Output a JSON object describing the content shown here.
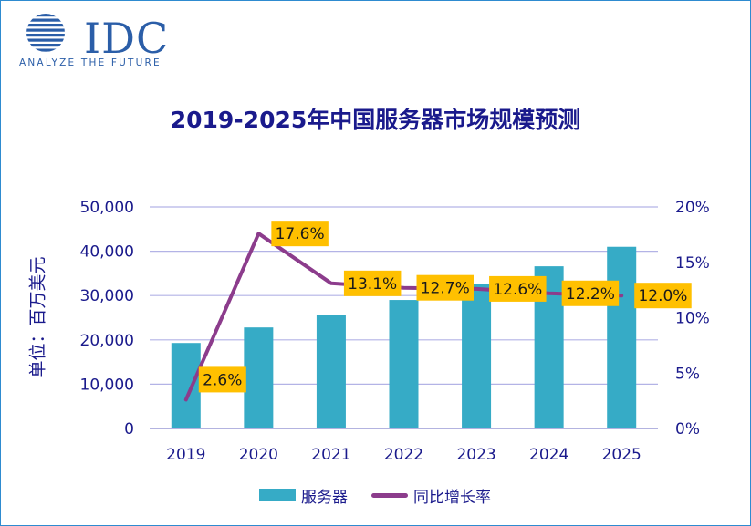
{
  "logo": {
    "word": "IDC",
    "tagline": "ANALYZE THE FUTURE"
  },
  "chart_data": {
    "type": "bar",
    "title": "2019-2025年中国服务器市场规模预测",
    "ylabel": "单位：百万美元",
    "xlabel": "",
    "categories": [
      "2019",
      "2020",
      "2021",
      "2022",
      "2023",
      "2024",
      "2025"
    ],
    "series": [
      {
        "name": "服务器",
        "type": "bar",
        "axis": "left",
        "values": [
          19300,
          22800,
          25700,
          29000,
          32600,
          36600,
          41000
        ]
      },
      {
        "name": "同比增长率",
        "type": "line",
        "axis": "right",
        "values": [
          2.6,
          17.6,
          13.1,
          12.7,
          12.6,
          12.2,
          12.0
        ],
        "labels": [
          "2.6%",
          "17.6%",
          "13.1%",
          "12.7%",
          "12.6%",
          "12.2%",
          "12.0%"
        ]
      }
    ],
    "ylim": [
      0,
      50000
    ],
    "yticks": [
      "0",
      "10,000",
      "20,000",
      "30,000",
      "40,000",
      "50,000"
    ],
    "y2lim": [
      0,
      20
    ],
    "y2ticks": [
      "0%",
      "5%",
      "10%",
      "15%",
      "20%"
    ],
    "grid": true,
    "legend": "bottom",
    "colors": {
      "bar": "#36abc6",
      "line": "#8c3c8c",
      "label_bg": "#ffc000",
      "text": "#1a1a8c",
      "grid": "#b3b3e6"
    }
  }
}
